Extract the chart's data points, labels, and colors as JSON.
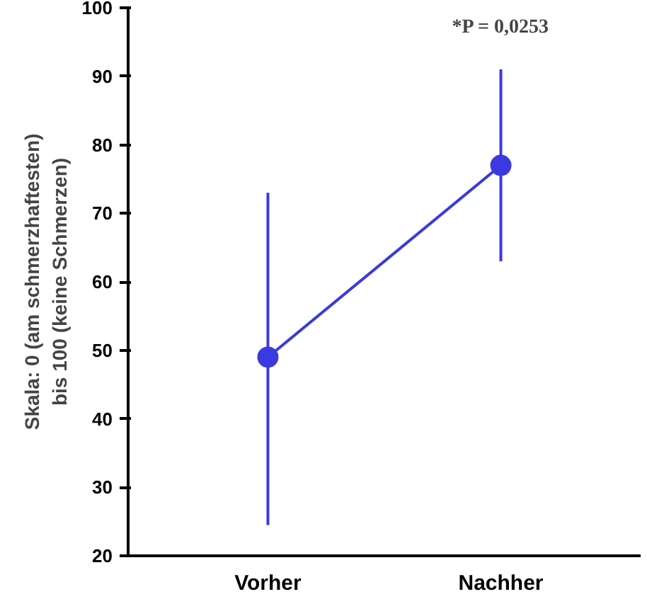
{
  "chart_data": {
    "type": "line",
    "ylabel": "Skala: 0 (am schmerzhaftesten)\nbis 100 (keine Schmerzen)",
    "categories": [
      "Vorher",
      "Nachher"
    ],
    "series": [
      {
        "color": "#3a3ae0",
        "values": [
          49,
          77
        ],
        "errors": [
          [
            24.5,
            73
          ],
          [
            63,
            91
          ]
        ]
      }
    ],
    "ylim": [
      20,
      100
    ],
    "yticks": [
      20,
      30,
      40,
      50,
      60,
      70,
      80,
      90,
      100
    ],
    "marker": "circle",
    "line_style": "solid",
    "grid": false,
    "annotations": [
      "*P = 0,0253"
    ]
  }
}
